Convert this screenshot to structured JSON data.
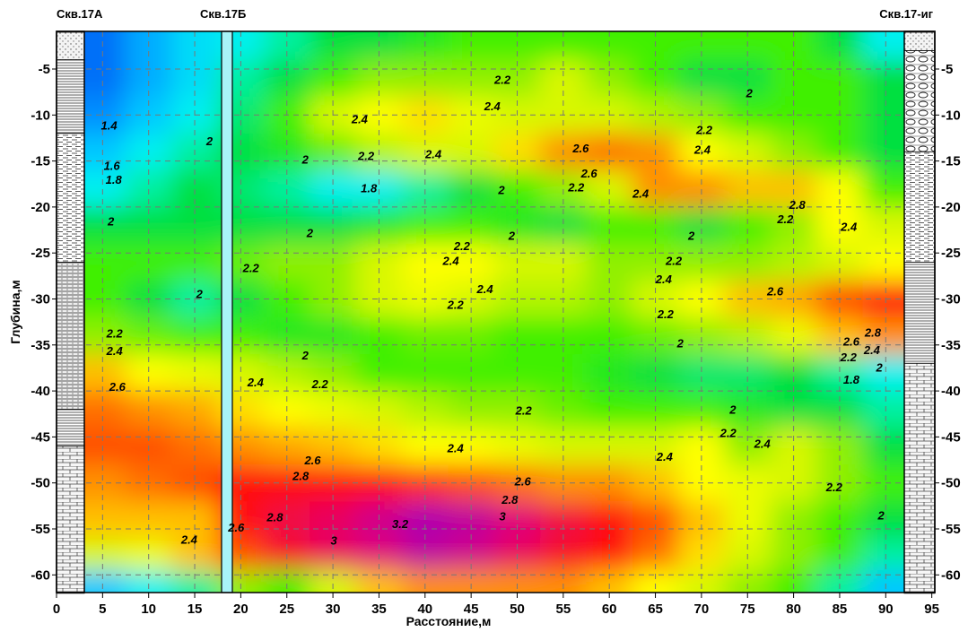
{
  "chart_data": {
    "type": "heatmap",
    "title": "",
    "xlabel": "Расстояние,м",
    "ylabel": "Глубина,м",
    "xlim": [
      0,
      95
    ],
    "ylim": [
      -62,
      -1
    ],
    "x_ticks": [
      "0",
      "5",
      "10",
      "15",
      "20",
      "25",
      "30",
      "35",
      "40",
      "45",
      "50",
      "55",
      "60",
      "65",
      "70",
      "75",
      "80",
      "85",
      "90",
      "95"
    ],
    "y_ticks": [
      "-5",
      "-10",
      "-15",
      "-20",
      "-25",
      "-30",
      "-35",
      "-40",
      "-45",
      "-50",
      "-55",
      "-60"
    ],
    "grid": true,
    "x": [
      5,
      10,
      15,
      20,
      25,
      30,
      35,
      40,
      45,
      50,
      55,
      60,
      65,
      70,
      75,
      80,
      85,
      90
    ],
    "y": [
      -2,
      -6,
      -10,
      -14,
      -18,
      -22,
      -26,
      -30,
      -34,
      -38,
      -42,
      -46,
      -50,
      -54,
      -58,
      -61
    ],
    "z": [
      [
        1.3,
        1.5,
        1.7,
        1.8,
        1.9,
        2.0,
        2.0,
        2.05,
        2.1,
        2.1,
        2.1,
        2.1,
        2.1,
        2.1,
        2.1,
        2.1,
        2.0,
        1.8
      ],
      [
        1.3,
        1.5,
        1.7,
        1.9,
        2.0,
        2.1,
        2.2,
        2.2,
        2.2,
        2.2,
        2.3,
        2.2,
        2.1,
        2.0,
        2.0,
        2.1,
        2.1,
        2.0
      ],
      [
        1.4,
        1.6,
        1.8,
        1.95,
        2.1,
        2.3,
        2.4,
        2.45,
        2.35,
        2.3,
        2.3,
        2.3,
        2.25,
        2.2,
        2.1,
        2.1,
        2.1,
        2.0
      ],
      [
        1.6,
        1.8,
        1.9,
        2.0,
        2.05,
        2.15,
        2.25,
        2.3,
        2.3,
        2.45,
        2.6,
        2.65,
        2.6,
        2.4,
        2.3,
        2.2,
        2.1,
        2.0
      ],
      [
        1.8,
        1.9,
        2.0,
        1.95,
        1.9,
        1.8,
        1.8,
        1.9,
        2.0,
        2.1,
        2.2,
        2.3,
        2.6,
        2.6,
        2.5,
        2.5,
        2.4,
        2.1
      ],
      [
        2.0,
        2.0,
        2.0,
        2.0,
        2.0,
        2.0,
        2.05,
        2.1,
        2.1,
        2.05,
        2.0,
        2.1,
        2.1,
        2.0,
        2.1,
        2.2,
        2.4,
        2.3
      ],
      [
        2.1,
        2.1,
        2.1,
        2.15,
        2.2,
        2.2,
        2.3,
        2.4,
        2.4,
        2.3,
        2.3,
        2.2,
        2.2,
        2.2,
        2.2,
        2.25,
        2.3,
        2.4
      ],
      [
        2.1,
        2.0,
        1.9,
        2.0,
        2.1,
        2.2,
        2.3,
        2.35,
        2.3,
        2.25,
        2.25,
        2.2,
        2.3,
        2.4,
        2.5,
        2.55,
        2.7,
        2.8
      ],
      [
        2.2,
        2.15,
        2.1,
        2.1,
        2.05,
        2.05,
        2.1,
        2.15,
        2.15,
        2.1,
        2.1,
        2.1,
        2.15,
        2.2,
        2.25,
        2.35,
        2.5,
        2.6
      ],
      [
        2.5,
        2.4,
        2.35,
        2.3,
        2.25,
        2.2,
        2.1,
        2.1,
        2.1,
        2.1,
        2.1,
        2.05,
        2.0,
        1.95,
        1.95,
        2.0,
        1.9,
        1.8
      ],
      [
        2.65,
        2.6,
        2.55,
        2.45,
        2.4,
        2.35,
        2.3,
        2.25,
        2.2,
        2.2,
        2.15,
        2.1,
        2.1,
        2.1,
        2.05,
        2.0,
        2.0,
        1.9
      ],
      [
        2.7,
        2.7,
        2.65,
        2.6,
        2.55,
        2.5,
        2.45,
        2.4,
        2.4,
        2.35,
        2.3,
        2.3,
        2.3,
        2.4,
        2.2,
        2.3,
        2.2,
        2.0
      ],
      [
        2.6,
        2.65,
        2.7,
        2.8,
        2.8,
        2.8,
        2.8,
        2.75,
        2.7,
        2.65,
        2.6,
        2.6,
        2.5,
        2.4,
        2.35,
        2.3,
        2.2,
        2.1
      ],
      [
        2.5,
        2.5,
        2.5,
        2.8,
        2.9,
        2.95,
        3.05,
        3.15,
        3.1,
        3.0,
        2.9,
        2.8,
        2.7,
        2.5,
        2.35,
        2.2,
        2.1,
        2.0
      ],
      [
        2.3,
        2.35,
        2.5,
        2.7,
        2.85,
        2.95,
        3.0,
        3.1,
        3.05,
        2.95,
        2.85,
        2.8,
        2.65,
        2.45,
        2.3,
        2.2,
        2.1,
        1.9
      ],
      [
        1.6,
        1.8,
        1.9,
        2.2,
        2.1,
        2.3,
        2.5,
        2.6,
        2.6,
        2.6,
        2.6,
        2.5,
        2.4,
        2.3,
        2.2,
        2.1,
        1.9,
        1.6
      ]
    ],
    "colorscale": [
      [
        1.2,
        "#0050f0"
      ],
      [
        1.4,
        "#0090ff"
      ],
      [
        1.6,
        "#00c8ff"
      ],
      [
        1.8,
        "#00f0f0"
      ],
      [
        1.9,
        "#00f0a0"
      ],
      [
        2.0,
        "#00e040"
      ],
      [
        2.1,
        "#40f000"
      ],
      [
        2.2,
        "#90f000"
      ],
      [
        2.3,
        "#d8f800"
      ],
      [
        2.4,
        "#ffff00"
      ],
      [
        2.5,
        "#ffc000"
      ],
      [
        2.6,
        "#ff9000"
      ],
      [
        2.7,
        "#ff5000"
      ],
      [
        2.8,
        "#ff1010"
      ],
      [
        3.0,
        "#e0007a"
      ],
      [
        3.2,
        "#a000c0"
      ]
    ],
    "contour_labels": [
      {
        "text": "2.2",
        "x": 48.4,
        "y": -6.1
      },
      {
        "text": "2",
        "x": 75.2,
        "y": -7.6
      },
      {
        "text": "1.4",
        "x": 5.7,
        "y": -11.1
      },
      {
        "text": "2.4",
        "x": 32.9,
        "y": -10.4
      },
      {
        "text": "2.4",
        "x": 47.3,
        "y": -9.0
      },
      {
        "text": "2.2",
        "x": 70.3,
        "y": -11.6
      },
      {
        "text": "2",
        "x": 16.6,
        "y": -12.8
      },
      {
        "text": "2.2",
        "x": 33.6,
        "y": -14.4
      },
      {
        "text": "2.4",
        "x": 40.9,
        "y": -14.2
      },
      {
        "text": "2.6",
        "x": 56.9,
        "y": -13.6
      },
      {
        "text": "2.4",
        "x": 70.1,
        "y": -13.7
      },
      {
        "text": "1.6",
        "x": 6.0,
        "y": -15.5
      },
      {
        "text": "1.8",
        "x": 6.2,
        "y": -17.0
      },
      {
        "text": "2",
        "x": 27.0,
        "y": -14.8
      },
      {
        "text": "2.6",
        "x": 57.8,
        "y": -16.3
      },
      {
        "text": "1.8",
        "x": 33.9,
        "y": -17.9
      },
      {
        "text": "2",
        "x": 48.3,
        "y": -18.1
      },
      {
        "text": "2.2",
        "x": 56.4,
        "y": -17.8
      },
      {
        "text": "2.4",
        "x": 63.4,
        "y": -18.5
      },
      {
        "text": "2.8",
        "x": 80.4,
        "y": -19.7
      },
      {
        "text": "2.2",
        "x": 79.1,
        "y": -21.3
      },
      {
        "text": "2.4",
        "x": 86.0,
        "y": -22.1
      },
      {
        "text": "2",
        "x": 5.9,
        "y": -21.5
      },
      {
        "text": "2",
        "x": 27.5,
        "y": -22.8
      },
      {
        "text": "2",
        "x": 49.4,
        "y": -23.1
      },
      {
        "text": "2",
        "x": 68.9,
        "y": -23.1
      },
      {
        "text": "2.2",
        "x": 44.0,
        "y": -24.2
      },
      {
        "text": "2.4",
        "x": 42.8,
        "y": -25.8
      },
      {
        "text": "2.2",
        "x": 67.0,
        "y": -25.8
      },
      {
        "text": "2.2",
        "x": 21.1,
        "y": -26.6
      },
      {
        "text": "2.4",
        "x": 65.9,
        "y": -27.8
      },
      {
        "text": "2.4",
        "x": 46.5,
        "y": -28.9
      },
      {
        "text": "2.6",
        "x": 78.0,
        "y": -29.1
      },
      {
        "text": "2",
        "x": 15.5,
        "y": -29.4
      },
      {
        "text": "2.2",
        "x": 43.3,
        "y": -30.6
      },
      {
        "text": "2.2",
        "x": 66.1,
        "y": -31.6
      },
      {
        "text": "2.2",
        "x": 6.3,
        "y": -33.7
      },
      {
        "text": "2",
        "x": 67.7,
        "y": -34.8
      },
      {
        "text": "2.4",
        "x": 6.3,
        "y": -35.6
      },
      {
        "text": "2",
        "x": 27.0,
        "y": -36.1
      },
      {
        "text": "2.8",
        "x": 88.6,
        "y": -33.6
      },
      {
        "text": "2.6",
        "x": 88.6,
        "y": -34.6
      },
      {
        "text": "2.4",
        "x": 88.5,
        "y": -35.5
      },
      {
        "text": "2.2",
        "x": 88.3,
        "y": -36.3
      },
      {
        "text": "2",
        "x": 89.3,
        "y": -37.4
      },
      {
        "text": "1.8",
        "x": 88.6,
        "y": -38.7
      },
      {
        "text": "2.4",
        "x": 21.6,
        "y": -39.0
      },
      {
        "text": "2.2",
        "x": 28.6,
        "y": -39.2
      },
      {
        "text": "2.6",
        "x": 6.6,
        "y": -39.5
      },
      {
        "text": "2.2",
        "x": 50.7,
        "y": -42.1
      },
      {
        "text": "2",
        "x": 73.4,
        "y": -42.0
      },
      {
        "text": "2.2",
        "x": 72.9,
        "y": -44.5
      },
      {
        "text": "2.4",
        "x": 76.6,
        "y": -45.7
      },
      {
        "text": "2.4",
        "x": 43.3,
        "y": -46.2
      },
      {
        "text": "2.4",
        "x": 66.0,
        "y": -47.1
      },
      {
        "text": "2.6",
        "x": 27.8,
        "y": -47.5
      },
      {
        "text": "2.8",
        "x": 26.5,
        "y": -49.2
      },
      {
        "text": "2.6",
        "x": 50.6,
        "y": -49.8
      },
      {
        "text": "2.2",
        "x": 84.4,
        "y": -50.4
      },
      {
        "text": "2.8",
        "x": 49.2,
        "y": -51.8
      },
      {
        "text": "2.8",
        "x": 23.7,
        "y": -53.7
      },
      {
        "text": "3",
        "x": 48.4,
        "y": -53.6
      },
      {
        "text": "2",
        "x": 89.5,
        "y": -53.5
      },
      {
        "text": "2.6",
        "x": 19.5,
        "y": -54.8
      },
      {
        "text": "3.2",
        "x": 37.3,
        "y": -54.4
      },
      {
        "text": "3",
        "x": 30.1,
        "y": -56.2
      },
      {
        "text": "2.4",
        "x": 14.4,
        "y": -56.1
      }
    ],
    "wells": [
      {
        "name": "Скв.17А",
        "x": 3,
        "side": "left",
        "layers": [
          {
            "top": -1,
            "bottom": -4,
            "type": "sand"
          },
          {
            "top": -4,
            "bottom": -12,
            "type": "clay"
          },
          {
            "top": -12,
            "bottom": -26,
            "type": "loam"
          },
          {
            "top": -26,
            "bottom": -42,
            "type": "sandy-clay"
          },
          {
            "top": -42,
            "bottom": -46,
            "type": "clay"
          },
          {
            "top": -46,
            "bottom": -62,
            "type": "limestone"
          }
        ]
      },
      {
        "name": "Скв.17Б",
        "x": 18.5,
        "side": "middle",
        "layers": []
      },
      {
        "name": "Скв.17-иг",
        "x": 92,
        "side": "right",
        "layers": [
          {
            "top": -1,
            "bottom": -3,
            "type": "sand"
          },
          {
            "top": -3,
            "bottom": -14,
            "type": "gravel"
          },
          {
            "top": -14,
            "bottom": -26,
            "type": "loam"
          },
          {
            "top": -26,
            "bottom": -37,
            "type": "clay"
          },
          {
            "top": -37,
            "bottom": -62,
            "type": "limestone"
          }
        ]
      }
    ]
  }
}
